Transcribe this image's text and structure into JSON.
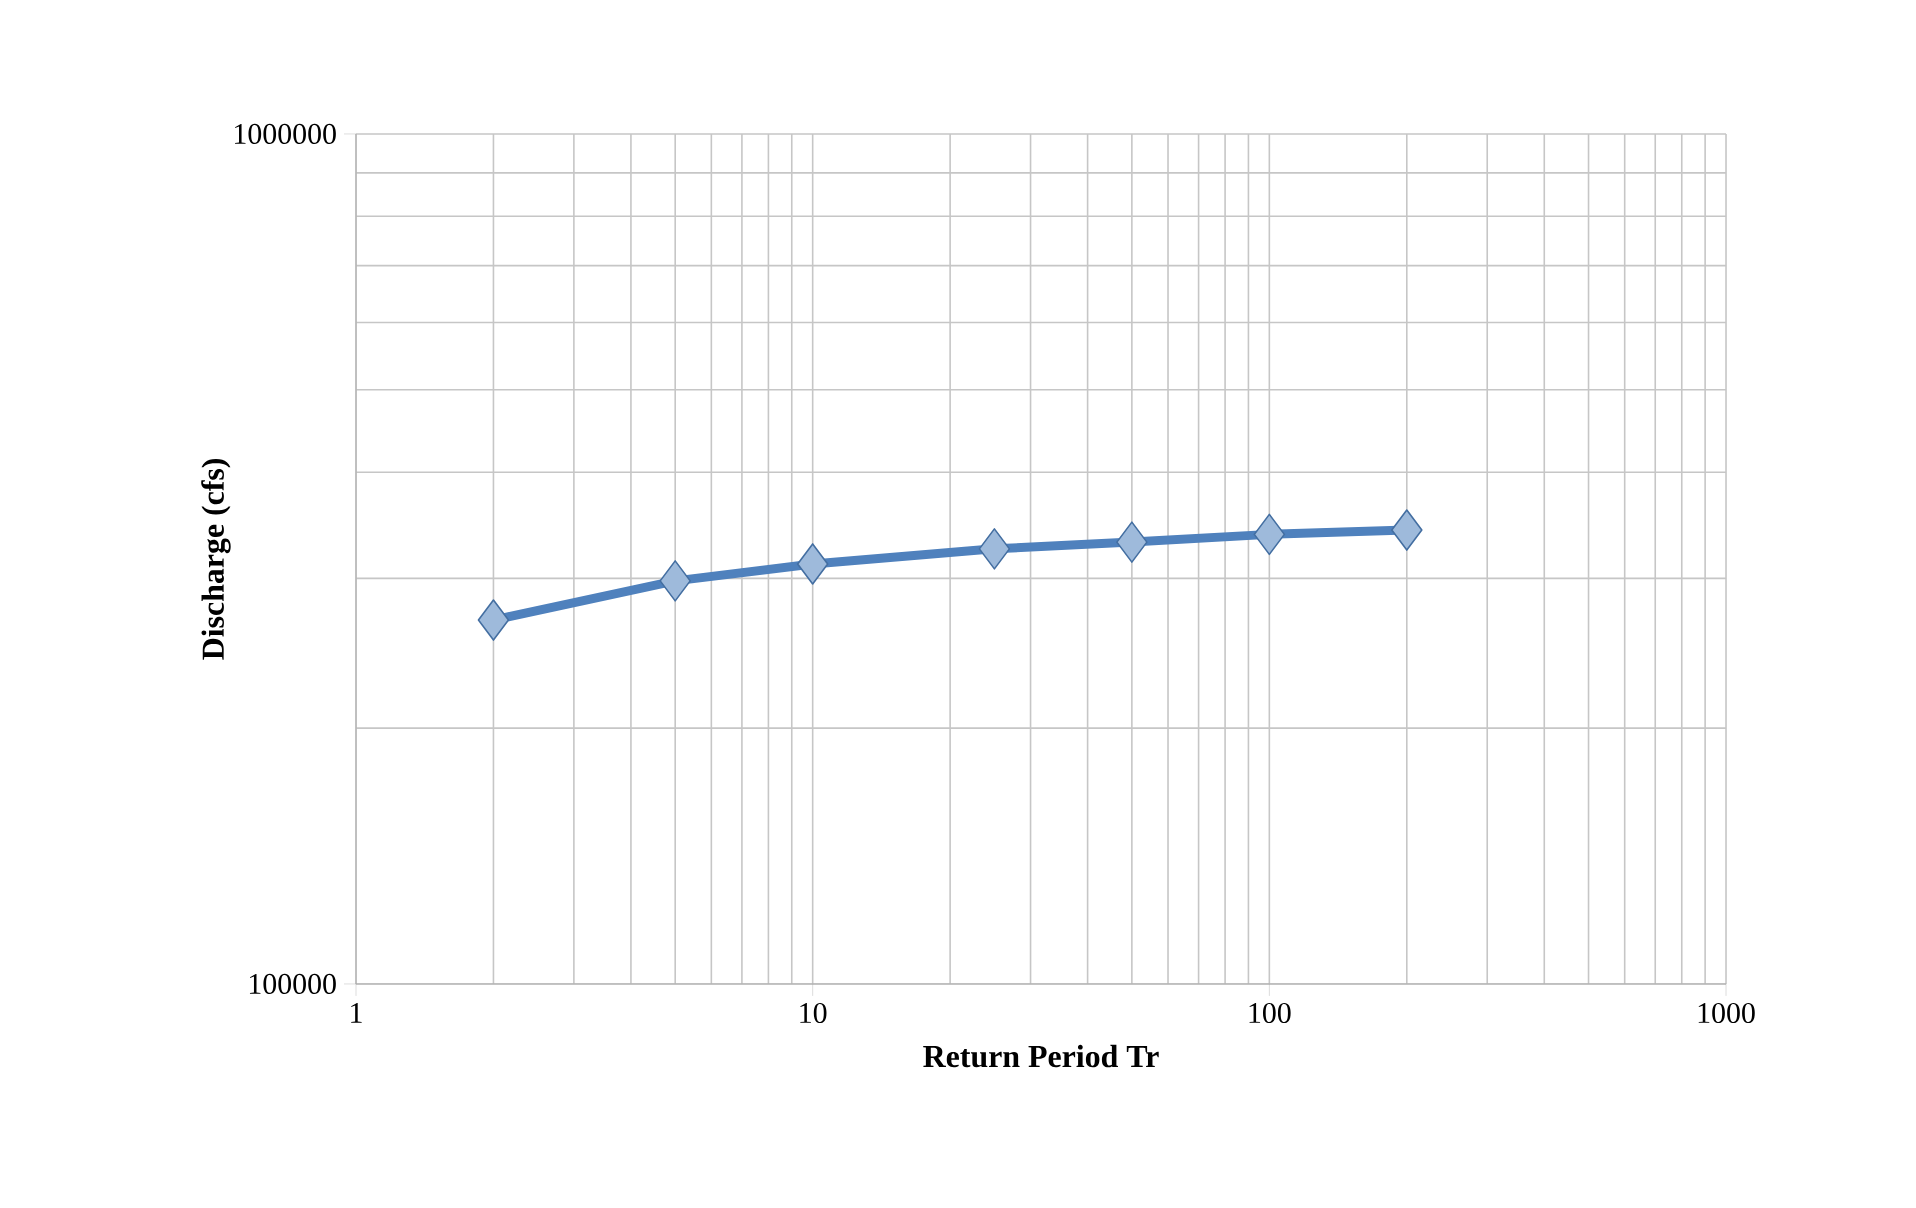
{
  "chart_data": {
    "type": "line",
    "xlabel": "Return Period Tr",
    "ylabel": "Discharge (cfs)",
    "x": [
      2,
      5,
      10,
      25,
      50,
      100,
      200
    ],
    "series": [
      {
        "color": "#4f81bd",
        "values": [
          268000,
          298000,
          312000,
          325000,
          331000,
          338000,
          342000
        ]
      }
    ],
    "log": "xy",
    "xlim": [
      1,
      1000
    ],
    "ylim": [
      100000,
      1000000
    ],
    "xticks": [
      1,
      10,
      100,
      1000
    ],
    "yticks": [
      100000,
      1000000
    ],
    "grid": true,
    "marker": "diamond",
    "line_style": "solid"
  }
}
